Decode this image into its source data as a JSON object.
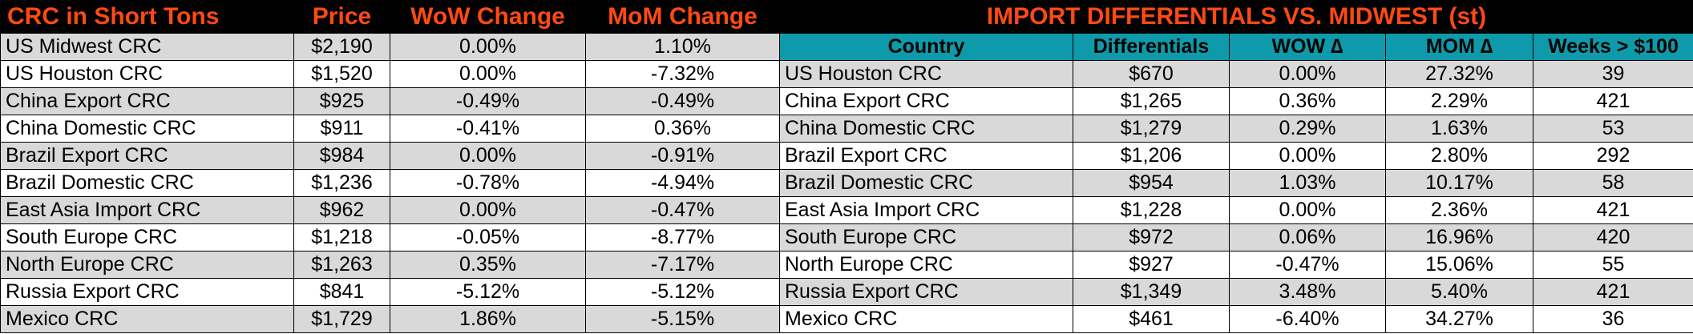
{
  "left": {
    "headers": [
      "CRC in Short Tons",
      "Price",
      "WoW Change",
      "MoM Change"
    ],
    "rows": [
      {
        "name": "US Midwest CRC",
        "price": "$2,190",
        "wow": "0.00%",
        "mom": "1.10%"
      },
      {
        "name": "US Houston CRC",
        "price": "$1,520",
        "wow": "0.00%",
        "mom": "-7.32%"
      },
      {
        "name": "China Export CRC",
        "price": "$925",
        "wow": "-0.49%",
        "mom": "-0.49%"
      },
      {
        "name": "China Domestic CRC",
        "price": "$911",
        "wow": "-0.41%",
        "mom": "0.36%"
      },
      {
        "name": "Brazil Export CRC",
        "price": "$984",
        "wow": "0.00%",
        "mom": "-0.91%"
      },
      {
        "name": "Brazil Domestic CRC",
        "price": "$1,236",
        "wow": "-0.78%",
        "mom": "-4.94%"
      },
      {
        "name": "East Asia Import CRC",
        "price": "$962",
        "wow": "0.00%",
        "mom": "-0.47%"
      },
      {
        "name": "South Europe CRC",
        "price": "$1,218",
        "wow": "-0.05%",
        "mom": "-8.77%"
      },
      {
        "name": "North Europe CRC",
        "price": "$1,263",
        "wow": "0.35%",
        "mom": "-7.17%"
      },
      {
        "name": "Russia Export CRC",
        "price": "$841",
        "wow": "-5.12%",
        "mom": "-5.12%"
      },
      {
        "name": "Mexico CRC",
        "price": "$1,729",
        "wow": "1.86%",
        "mom": "-5.15%"
      }
    ]
  },
  "right": {
    "title": "IMPORT DIFFERENTIALS VS. MIDWEST (st)",
    "headers": [
      "Country",
      "Differentials",
      "WOW ∆",
      "MOM ∆",
      "Weeks > $100"
    ],
    "rows": [
      {
        "name": "US Houston CRC",
        "diff": "$670",
        "wow": "0.00%",
        "mom": "27.32%",
        "weeks": "39"
      },
      {
        "name": "China Export CRC",
        "diff": "$1,265",
        "wow": "0.36%",
        "mom": "2.29%",
        "weeks": "421"
      },
      {
        "name": "China Domestic CRC",
        "diff": "$1,279",
        "wow": "0.29%",
        "mom": "1.63%",
        "weeks": "53"
      },
      {
        "name": "Brazil Export CRC",
        "diff": "$1,206",
        "wow": "0.00%",
        "mom": "2.80%",
        "weeks": "292"
      },
      {
        "name": "Brazil Domestic CRC",
        "diff": "$954",
        "wow": "1.03%",
        "mom": "10.17%",
        "weeks": "58"
      },
      {
        "name": "East Asia Import CRC",
        "diff": "$1,228",
        "wow": "0.00%",
        "mom": "2.36%",
        "weeks": "421"
      },
      {
        "name": "South Europe CRC",
        "diff": "$972",
        "wow": "0.06%",
        "mom": "16.96%",
        "weeks": "420"
      },
      {
        "name": "North Europe CRC",
        "diff": "$927",
        "wow": "-0.47%",
        "mom": "15.06%",
        "weeks": "55"
      },
      {
        "name": "Russia Export CRC",
        "diff": "$1,349",
        "wow": "3.48%",
        "mom": "5.40%",
        "weeks": "421"
      },
      {
        "name": "Mexico CRC",
        "diff": "$461",
        "wow": "-6.40%",
        "mom": "34.27%",
        "weeks": "36"
      }
    ]
  },
  "colors": {
    "header_bg": "#000000",
    "header_text": "#ff4a12",
    "subheader_bg": "#0e9aaa",
    "row_shade": "#d9d9d9"
  }
}
